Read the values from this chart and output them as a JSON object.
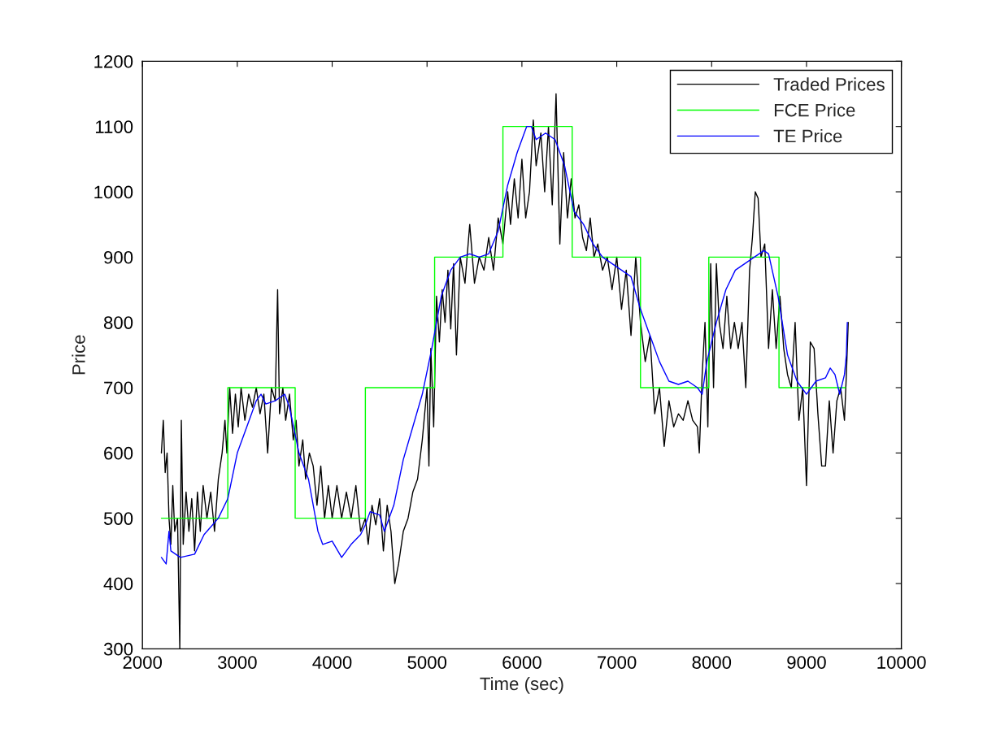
{
  "chart_data": {
    "type": "line",
    "xlabel": "Time (sec)",
    "ylabel": "Price",
    "xlim": [
      2000,
      10000
    ],
    "ylim": [
      300,
      1200
    ],
    "xticks": [
      2000,
      3000,
      4000,
      5000,
      6000,
      7000,
      8000,
      9000,
      10000
    ],
    "yticks": [
      300,
      400,
      500,
      600,
      700,
      800,
      900,
      1000,
      1100,
      1200
    ],
    "grid": false,
    "legend": "top right",
    "series": [
      {
        "name": "Traded Prices",
        "color": "#000000",
        "x": [
          2200,
          2220,
          2240,
          2260,
          2280,
          2300,
          2320,
          2340,
          2370,
          2394,
          2410,
          2430,
          2460,
          2490,
          2520,
          2550,
          2580,
          2610,
          2640,
          2680,
          2720,
          2760,
          2800,
          2840,
          2870,
          2890,
          2920,
          2950,
          2980,
          3010,
          3040,
          3080,
          3120,
          3160,
          3200,
          3240,
          3280,
          3320,
          3360,
          3400,
          3425,
          3445,
          3480,
          3510,
          3550,
          3590,
          3620,
          3650,
          3690,
          3720,
          3760,
          3800,
          3840,
          3880,
          3920,
          3960,
          4000,
          4050,
          4100,
          4150,
          4200,
          4250,
          4300,
          4350,
          4380,
          4420,
          4460,
          4500,
          4540,
          4580,
          4620,
          4660,
          4700,
          4750,
          4800,
          4850,
          4900,
          4950,
          5000,
          5020,
          5040,
          5070,
          5100,
          5130,
          5160,
          5190,
          5220,
          5250,
          5280,
          5310,
          5350,
          5400,
          5450,
          5500,
          5550,
          5600,
          5650,
          5700,
          5750,
          5800,
          5850,
          5880,
          5920,
          5960,
          6000,
          6040,
          6080,
          6120,
          6150,
          6200,
          6240,
          6280,
          6320,
          6360,
          6400,
          6440,
          6480,
          6520,
          6560,
          6600,
          6640,
          6680,
          6720,
          6760,
          6800,
          6850,
          6900,
          6950,
          7000,
          7050,
          7100,
          7150,
          7200,
          7250,
          7300,
          7350,
          7400,
          7450,
          7500,
          7550,
          7600,
          7650,
          7700,
          7750,
          7800,
          7850,
          7870,
          7900,
          7930,
          7960,
          7990,
          8020,
          8050,
          8080,
          8120,
          8160,
          8200,
          8240,
          8280,
          8320,
          8360,
          8400,
          8430,
          8460,
          8490,
          8520,
          8560,
          8600,
          8640,
          8680,
          8720,
          8760,
          8800,
          8840,
          8880,
          8920,
          8960,
          9000,
          9040,
          9080,
          9120,
          9160,
          9200,
          9240,
          9280,
          9320,
          9360,
          9400,
          9420,
          9440
        ],
        "values": [
          600,
          650,
          570,
          600,
          500,
          460,
          550,
          480,
          500,
          300,
          650,
          460,
          540,
          480,
          530,
          450,
          540,
          480,
          550,
          500,
          540,
          480,
          560,
          600,
          650,
          600,
          700,
          630,
          690,
          640,
          700,
          650,
          690,
          670,
          700,
          660,
          690,
          600,
          700,
          680,
          850,
          660,
          700,
          650,
          690,
          620,
          650,
          580,
          620,
          560,
          600,
          580,
          520,
          580,
          500,
          550,
          500,
          550,
          500,
          540,
          500,
          550,
          480,
          500,
          460,
          520,
          490,
          530,
          450,
          520,
          480,
          400,
          430,
          480,
          500,
          540,
          560,
          620,
          700,
          580,
          760,
          640,
          840,
          770,
          850,
          800,
          880,
          790,
          890,
          750,
          900,
          860,
          950,
          860,
          900,
          880,
          930,
          880,
          960,
          920,
          1000,
          950,
          1020,
          960,
          1050,
          960,
          1000,
          1110,
          1040,
          1090,
          1000,
          1100,
          980,
          1150,
          920,
          1060,
          960,
          1020,
          960,
          980,
          930,
          910,
          960,
          900,
          920,
          880,
          900,
          850,
          900,
          820,
          880,
          780,
          900,
          800,
          740,
          780,
          660,
          700,
          610,
          680,
          640,
          660,
          650,
          680,
          650,
          640,
          600,
          720,
          800,
          640,
          890,
          700,
          890,
          800,
          760,
          840,
          760,
          800,
          760,
          800,
          700,
          880,
          930,
          1000,
          990,
          900,
          920,
          760,
          850,
          760,
          840,
          760,
          720,
          700,
          800,
          650,
          700,
          550,
          770,
          760,
          660,
          580,
          580,
          680,
          600,
          680,
          700,
          650,
          720,
          800
        ]
      },
      {
        "name": "FCE Price",
        "color": "#00ff00",
        "type": "step",
        "x": [
          2200,
          2900,
          3610,
          4350,
          5080,
          5800,
          6530,
          7250,
          7970,
          8710,
          9410
        ],
        "values": [
          500,
          700,
          500,
          700,
          900,
          1100,
          900,
          700,
          900,
          700,
          700
        ]
      },
      {
        "name": "TE Price",
        "color": "#0000ff",
        "x": [
          2200,
          2250,
          2280,
          2300,
          2400,
          2550,
          2650,
          2800,
          2900,
          3000,
          3100,
          3200,
          3250,
          3300,
          3400,
          3500,
          3550,
          3650,
          3750,
          3850,
          3900,
          4000,
          4100,
          4200,
          4300,
          4350,
          4400,
          4500,
          4550,
          4650,
          4750,
          4850,
          4950,
          5050,
          5150,
          5250,
          5350,
          5450,
          5550,
          5650,
          5750,
          5850,
          5950,
          6050,
          6100,
          6150,
          6250,
          6350,
          6450,
          6550,
          6650,
          6750,
          6850,
          6950,
          7050,
          7150,
          7250,
          7350,
          7450,
          7550,
          7650,
          7750,
          7850,
          7900,
          7950,
          8050,
          8150,
          8250,
          8350,
          8450,
          8550,
          8600,
          8700,
          8800,
          8900,
          9000,
          9100,
          9200,
          9250,
          9300,
          9350,
          9400,
          9420,
          9430
        ],
        "values": [
          440,
          430,
          480,
          450,
          440,
          445,
          475,
          500,
          530,
          600,
          640,
          680,
          690,
          675,
          680,
          690,
          670,
          600,
          560,
          480,
          460,
          465,
          440,
          460,
          475,
          490,
          510,
          505,
          480,
          520,
          590,
          640,
          690,
          760,
          840,
          880,
          900,
          905,
          900,
          905,
          940,
          1010,
          1060,
          1100,
          1100,
          1080,
          1090,
          1080,
          1040,
          970,
          950,
          920,
          900,
          890,
          880,
          870,
          820,
          780,
          740,
          710,
          705,
          710,
          700,
          690,
          740,
          800,
          850,
          880,
          890,
          900,
          910,
          905,
          840,
          750,
          710,
          690,
          710,
          715,
          730,
          720,
          690,
          720,
          750,
          800
        ]
      }
    ]
  }
}
